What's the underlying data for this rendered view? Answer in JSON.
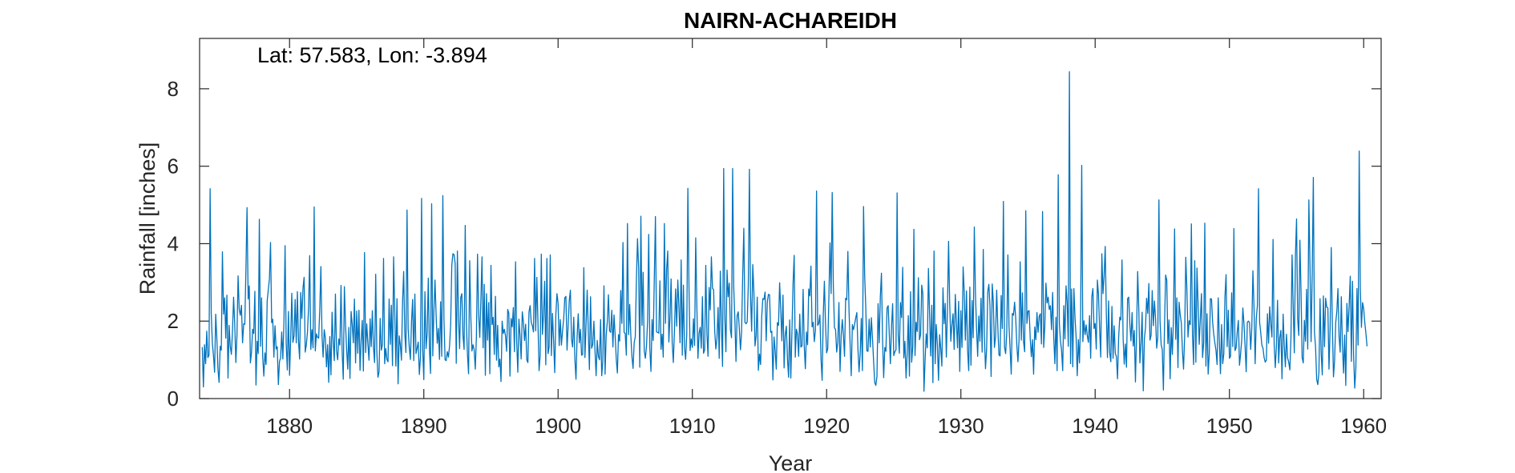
{
  "chart_data": {
    "type": "line",
    "title": "NAIRN-ACHAREIDH",
    "annotation": "Lat: 57.583, Lon: -3.894",
    "xlabel": "Year",
    "ylabel": "Rainfall [inches]",
    "xlim": [
      1873.3,
      1961.3
    ],
    "ylim": [
      0,
      9.3
    ],
    "xticks": [
      1880,
      1890,
      1900,
      1910,
      1920,
      1930,
      1940,
      1950,
      1960
    ],
    "yticks": [
      0,
      2,
      4,
      6,
      8
    ],
    "grid": false,
    "line_color": "#0072BD",
    "series": [
      {
        "start_year": 1873.5,
        "step_months": 1,
        "values": [
          1.33,
          0.3,
          1.39,
          0.9,
          1.74,
          1.06,
          1.12,
          5.42,
          2.2,
          1.43,
          1.11,
          0.68,
          2.18,
          1.56,
          0.77,
          0.42,
          1.35,
          1.25,
          3.79,
          2.18,
          2.6,
          1.56,
          2.67,
          0.53,
          1.89,
          1.35,
          1.14,
          1.75,
          2.62,
          1.93,
          0.93,
          1.64,
          3.17,
          2.31,
          2.15,
          2.41,
          1.44,
          1.93,
          1.92,
          3.31,
          4.93,
          2.57,
          2.91,
          0.92,
          1.19,
          1.79,
          1.68,
          2.77,
          0.35,
          1.48,
          1.16,
          4.63,
          1.35,
          2.6,
          1.08,
          0.58,
          1.18,
          0.88,
          2.52,
          2.81,
          3.08,
          4.03,
          1.96,
          2.05,
          1.07,
          1.88,
          1.28,
          1.34,
          0.36,
          0.96,
          1.05,
          1.72,
          1.02,
          2.0,
          3.95,
          1.42,
          0.74,
          2.25,
          0.6,
          1.55,
          2.72,
          1.45,
          1.62,
          2.56,
          1.44,
          2.76,
          1.49,
          1.02,
          2.74,
          2.07,
          2.85,
          3.13,
          1.2,
          1.39,
          1.71,
          2.35,
          3.69,
          1.27,
          1.78,
          1.31,
          4.95,
          1.23,
          1.67,
          1.58,
          1.56,
          2.29,
          3.41,
          1.62,
          1.07,
          1.78,
          1.56,
          0.82,
          1.39,
          0.42,
          1.6,
          0.61,
          2.23,
          1.47,
          0.98,
          2.7,
          1.23,
          1.0,
          1.54,
          1.38,
          2.92,
          1.22,
          0.5,
          2.89,
          1.94,
          1.27,
          0.76,
          1.84,
          0.52,
          2.25,
          1.92,
          1.44,
          2.57,
          0.92,
          2.26,
          1.17,
          2.28,
          0.73,
          1.5,
          2.02,
          0.71,
          3.77,
          1.19,
          1.93,
          1.42,
          0.99,
          2.06,
          1.34,
          2.27,
          1.33,
          0.93,
          3.21,
          1.21,
          0.55,
          0.69,
          2.07,
          1.25,
          1.39,
          3.62,
          0.9,
          1.29,
          1.01,
          0.95,
          2.57,
          1.4,
          2.41,
          0.85,
          3.66,
          2.26,
          0.84,
          2.58,
          0.38,
          1.62,
          1.39,
          0.99,
          2.49,
          3.28,
          1.69,
          1.19,
          4.87,
          1.8,
          1.32,
          1.01,
          1.98,
          2.56,
          0.98,
          2.7,
          1.16,
          1.3,
          1.46,
          0.62,
          1.07,
          5.17,
          1.25,
          0.49,
          2.76,
          1.29,
          1.69,
          3.11,
          1.29,
          0.65,
          5.03,
          1.1,
          2.26,
          3.06,
          2.14,
          1.43,
          1.81,
          1.01,
          2.5,
          1.09,
          5.24,
          2.04,
          1.0,
          0.98,
          1.21,
          1.07,
          1.36,
          1.91,
          3.44,
          3.74,
          3.72,
          3.49,
          0.91,
          3.81,
          2.05,
          1.29,
          2.61,
          2.71,
          1.62,
          1.27,
          4.47,
          1.96,
          1.15,
          0.64,
          3.56,
          2.12,
          1.23,
          1.39,
          1.26,
          0.76,
          1.59,
          3.73,
          2.17,
          1.58,
          2.55,
          3.66,
          1.31,
          2.95,
          0.6,
          2.71,
          1.51,
          2.48,
          0.64,
          3.44,
          1.91,
          2.1,
          1.14,
          2.64,
          0.99,
          1.89,
          0.82,
          1.02,
          0.44,
          2.0,
          1.68,
          1.79,
          1.62,
          1.22,
          2.3,
          2.2,
          0.58,
          2.07,
          1.85,
          2.35,
          1.21,
          3.53,
          1.48,
          0.68,
          2.05,
          1.62,
          1.02,
          2.24,
          1.98,
          1.5,
          1.92,
          1.0,
          0.93,
          2.24,
          2.4,
          1.97,
          1.88,
          1.72,
          3.62,
          1.75,
          3.13,
          1.98,
          0.72,
          1.12,
          3.73,
          1.66,
          2.17,
          3.03,
          0.87,
          3.62,
          1.16,
          1.33,
          3.71,
          1.11,
          2.2,
          1.49,
          0.67,
          2.17,
          2.71,
          2.46,
          1.37,
          2.04,
          1.38,
          1.75,
          2.05,
          2.6,
          2.64,
          1.25,
          1.88,
          2.53,
          2.8,
          1.53,
          1.33,
          2.1,
          1.03,
          0.5,
          1.59,
          2.19,
          1.44,
          1.79,
          1.12,
          1.14,
          3.38,
          1.06,
          1.9,
          2.8,
          1.76,
          0.75,
          2.63,
          1.3,
          1.4,
          2.0,
          1.23,
          0.59,
          1.5,
          1.09,
          1.0,
          2.04,
          0.59,
          0.97,
          2.91,
          0.63,
          1.64,
          1.99,
          2.68,
          1.75,
          1.71,
          2.28,
          1.33,
          2.16,
          1.63,
          1.02,
          0.66,
          1.65,
          1.48,
          2.79,
          1.94,
          4.03,
          1.71,
          1.68,
          1.12,
          4.52,
          1.65,
          2.43,
          1.63,
          1.09,
          0.78,
          1.44,
          1.6,
          3.08,
          4.13,
          3.36,
          0.81,
          4.71,
          1.89,
          3.26,
          1.23,
          1.04,
          1.35,
          2.01,
          4.24,
          1.3,
          0.7,
          2.04,
          1.5,
          3.12,
          4.7,
          1.72,
          1.71,
          1.69,
          3.04,
          1.27,
          1.66,
          1.07,
          4.52,
          1.94,
          3.34,
          3.81,
          1.46,
          2.11,
          3.09,
          1.44,
          0.93,
          1.75,
          2.83,
          1.87,
          3.06,
          2.37,
          1.44,
          3.58,
          1.12,
          2.93,
          1.31,
          1.01,
          1.67,
          5.43,
          2.86,
          1.24,
          1.54,
          1.32,
          2.06,
          1.37,
          4.15,
          2.41,
          1.04,
          1.69,
          1.84,
          1.3,
          2.63,
          1.17,
          1.26,
          3.44,
          1.68,
          1.09,
          2.87,
          2.29,
          3.66,
          2.85,
          2.81,
          1.74,
          1.28,
          1.55,
          2.35,
          1.04,
          3.29,
          1.85,
          0.83,
          5.94,
          2.14,
          1.21,
          3.32,
          2.63,
          2.98,
          1.78,
          1.57,
          5.94,
          2.87,
          2.04,
          0.96,
          2.14,
          2.24,
          1.8,
          1.26,
          1.72,
          3.18,
          4.4,
          1.97,
          1.93,
          1.98,
          2.92,
          5.92,
          2.65,
          1.74,
          3.46,
          2.76,
          1.36,
          1.61,
          2.62,
          0.73,
          1.15,
          0.88,
          2.12,
          2.58,
          2.56,
          2.75,
          1.49,
          2.5,
          2.69,
          2.68,
          1.71,
          1.74,
          0.48,
          1.59,
          1.24,
          0.76,
          1.96,
          1.89,
          2.99,
          2.3,
          1.49,
          2.67,
          0.79,
          1.64,
          1.87,
          1.03,
          0.55,
          2.03,
          0.53,
          1.72,
          2.96,
          3.7,
          1.07,
          1.79,
          1.66,
          1.09,
          2.18,
          1.33,
          1.36,
          2.82,
          1.35,
          0.77,
          1.72,
          1.39,
          2.83,
          2.65,
          3.42,
          1.85,
          1.97,
          1.47,
          1.76,
          5.36,
          1.89,
          1.94,
          2.16,
          1.02,
          0.47,
          2.15,
          3.03,
          1.94,
          1.18,
          1.29,
          2.58,
          4.02,
          2.71,
          5.32,
          2.92,
          1.83,
          1.78,
          1.2,
          1.45,
          2.48,
          0.7,
          1.62,
          2.04,
          1.64,
          1.09,
          2.59,
          2.55,
          3.8,
          2.3,
          1.41,
          0.59,
          1.91,
          1.78,
          1.92,
          2.08,
          2.22,
          1.28,
          0.69,
          1.16,
          2.07,
          0.72,
          4.96,
          3.2,
          2.34,
          1.23,
          1.22,
          2.05,
          1.33,
          2.09,
          1.56,
          0.96,
          0.41,
          0.34,
          0.58,
          2.45,
          1.44,
          2.63,
          3.24,
          1.53,
          0.54,
          1.32,
          1.22,
          2.34,
          2.4,
          1.67,
          0.9,
          1.84,
          2.45,
          1.11,
          1.21,
          1.26,
          5.31,
          1.64,
          1.17,
          2.48,
          2.09,
          3.39,
          1.05,
          1.48,
          0.53,
          1.17,
          2.14,
          0.58,
          2.76,
          0.94,
          1.34,
          4.37,
          1.11,
          1.97,
          1.73,
          3.12,
          1.52,
          1.65,
          2.93,
          2.71,
          0.19,
          0.98,
          1.67,
          1.31,
          3.36,
          2.21,
          1.1,
          2.41,
          0.41,
          3.81,
          0.9,
          1.91,
          1.39,
          0.47,
          1.65,
          1.29,
          0.84,
          2.86,
          1.93,
          2.46,
          1.07,
          2.36,
          4.06,
          2.44,
          1.48,
          1.91,
          2.19,
          1.27,
          2.69,
          1.97,
          1.31,
          2.51,
          0.7,
          2.27,
          1.32,
          3.4,
          2.76,
          1.51,
          2.78,
          1.24,
          0.72,
          2.88,
          0.86,
          2.53,
          1.57,
          4.43,
          2.73,
          1.81,
          1.09,
          2.13,
          1.48,
          2.59,
          1.2,
          3.85,
          1.63,
          0.77,
          1.28,
          2.75,
          2.95,
          2.38,
          0.57,
          2.96,
          2.5,
          1.32,
          1.6,
          2.8,
          1.85,
          1.13,
          1.1,
          2.66,
          1.81,
          5.09,
          1.33,
          1.16,
          1.7,
          3.71,
          1.87,
          1.28,
          0.63,
          2.2,
          2.15,
          2.49,
          2.08,
          1.38,
          0.95,
          1.53,
          3.53,
          1.51,
          2.73,
          1.47,
          1.21,
          4.85,
          1.94,
          2.26,
          2.27,
          1.54,
          1.08,
          1.52,
          0.63,
          1.85,
          1.52,
          2.22,
          1.71,
          2.12,
          2.19,
          1.41,
          4.83,
          1.32,
          1.85,
          2.98,
          2.47,
          2.62,
          2.3,
          2.4,
          1.78,
          2.74,
          1.58,
          0.9,
          2.1,
          0.72,
          5.78,
          1.94,
          1.49,
          1.24,
          0.72,
          2.4,
          1.54,
          2.91,
          2.48,
          1.35,
          8.44,
          0.9,
          2.83,
          0.82,
          2.84,
          2.09,
          1.58,
          0.59,
          1.52,
          0.92,
          2.08,
          6.02,
          1.47,
          2.01,
          1.65,
          1.9,
          1.62,
          1.45,
          2.14,
          1.04,
          2.63,
          2.84,
          1.81,
          1.94,
          1.28,
          3.06,
          2.68,
          1.78,
          1.07,
          3.74,
          2.71,
          3.16,
          3.93,
          2.19,
          1.06,
          2.52,
          1.19,
          0.95,
          2.38,
          1.04,
          1.88,
          1.17,
          1.08,
          0.51,
          1.58,
          2.1,
          2.03,
          3.58,
          1.55,
          0.89,
          1.41,
          0.81,
          2.58,
          2.62,
          1.93,
          1.49,
          2.22,
          1.36,
          1.76,
          0.43,
          1.66,
          3.28,
          2.33,
          0.92,
          1.43,
          2.23,
          0.2,
          1.54,
          1.83,
          2.59,
          2.2,
          2.97,
          1.51,
          1.63,
          2.79,
          1.88,
          2.52,
          2.06,
          1.3,
          1.59,
          5.13,
          2.01,
          1.39,
          1.26,
          0.22,
          1.89,
          3.19,
          3.06,
          1.42,
          2.03,
          0.51,
          1.83,
          1.14,
          2.09,
          4.38,
          1.53,
          2.6,
          0.8,
          2.49,
          2.17,
          1.96,
          1.24,
          0.76,
          1.62,
          3.65,
          2.82,
          1.59,
          2.01,
          1.91,
          4.51,
          1.62,
          0.88,
          3.56,
          0.94,
          3.37,
          2.43,
          1.4,
          2.05,
          2.71,
          1.06,
          1.44,
          4.53,
          0.84,
          2.19,
          0.63,
          1.16,
          2.58,
          2.57,
          1.97,
          1.66,
          1.44,
          1.24,
          0.88,
          2.6,
          1.49,
          0.64,
          1.91,
          0.9,
          1.16,
          2.62,
          3.2,
          1.34,
          2.28,
          1.04,
          1.09,
          2.73,
          1.34,
          4.39,
          1.24,
          1.31,
          1.73,
          2.02,
          0.86,
          1.15,
          1.51,
          2.34,
          1.94,
          1.35,
          0.69,
          1.97,
          2.0,
          1.96,
          1.27,
          1.82,
          3.3,
          2.35,
          0.9,
          2.06,
          2.4,
          5.42,
          1.97,
          1.7,
          1.38,
          1.3,
          1.06,
          0.94,
          0.99,
          2.19,
          1.43,
          2.37,
          1.92,
          1.59,
          4.11,
          1.4,
          0.8,
          1.35,
          2.54,
          0.92,
          1.58,
          1.76,
          0.51,
          2.18,
          1.37,
          0.82,
          1.66,
          1.05,
          0.94,
          0.74,
          1.58,
          3.71,
          2.39,
          1.18,
          3.69,
          4.64,
          2.06,
          1.63,
          4.09,
          2.77,
          1.06,
          0.92,
          2.02,
          1.48,
          2.82,
          1.28,
          5.13,
          3.46,
          1.47,
          3.24,
          5.71,
          1.71,
          1.33,
          0.49,
          0.36,
          0.68,
          2.58,
          1.19,
          0.61,
          2.65,
          1.34,
          2.59,
          2.36,
          2.34,
          0.76,
          1.81,
          3.9,
          1.93,
          0.56,
          0.98,
          1.96,
          2.25,
          2.84,
          1.6,
          1.2,
          2.63,
          1.38,
          0.66,
          1.64,
          0.34,
          2.46,
          1.73,
          2.4,
          3.16,
          0.96,
          3.03,
          1.12,
          0.27,
          0.78,
          2.84,
          1.38,
          6.39,
          2.85,
          1.84,
          2.48,
          2.32,
          1.96,
          1.68,
          1.35
        ]
      }
    ]
  }
}
